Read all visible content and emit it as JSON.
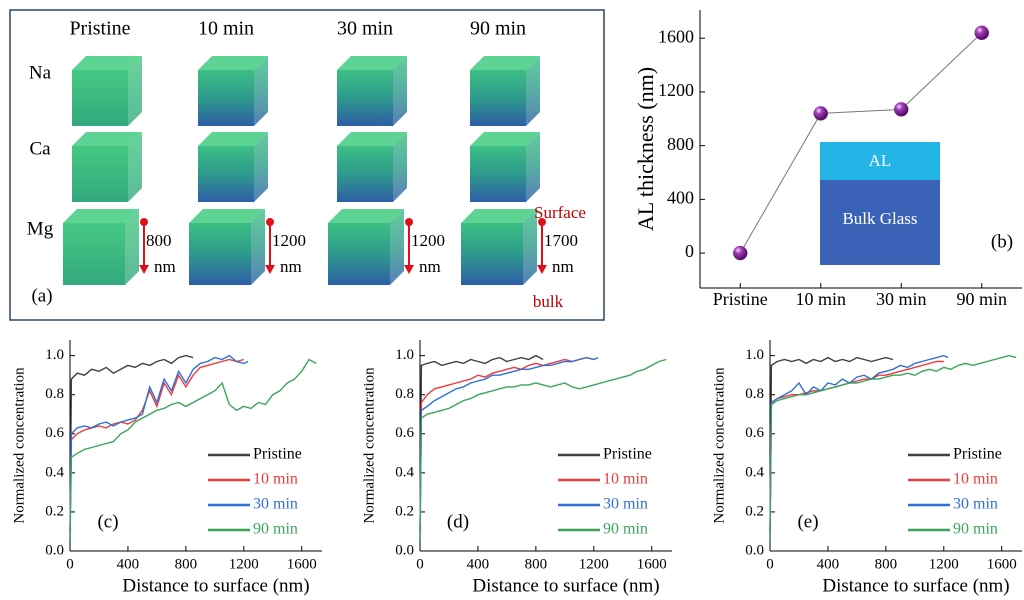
{
  "panel_a": {
    "columns": [
      "Pristine",
      "10 min",
      "30 min",
      "90 min"
    ],
    "rows": [
      "Na",
      "Ca",
      "Mg"
    ],
    "depth_labels": [
      [
        "800",
        "nm"
      ],
      [
        "1200",
        "nm"
      ],
      [
        "1200",
        "nm"
      ],
      [
        "1700",
        "nm"
      ]
    ],
    "surface": "Surface",
    "bulk": "bulk",
    "panel_label": "(a)"
  },
  "chart_data": [
    {
      "type": "line",
      "ylabel": "AL thickness (nm)",
      "categories": [
        "Pristine",
        "10 min",
        "30 min",
        "90 min"
      ],
      "values": [
        0,
        1040,
        1070,
        1640
      ],
      "color": "#8a1e9a",
      "ylim": [
        -260,
        1810
      ],
      "yticks": [
        0,
        400,
        800,
        1200,
        1600
      ],
      "annotations": [
        "AL",
        "Bulk Glass"
      ],
      "panel_label": "(b)"
    },
    {
      "type": "line",
      "xlabel": "Distance to surface (nm)",
      "ylabel": "Normalized concentration",
      "xlim": [
        0,
        1740
      ],
      "xticks": [
        0,
        400,
        800,
        1200,
        1600
      ],
      "ylim": [
        0,
        1.08
      ],
      "yticks": [
        {
          "value": 0,
          "label": "0.0"
        },
        0.2,
        0.4,
        0.6,
        0.8,
        {
          "value": 1,
          "label": "1.0"
        }
      ],
      "panel_label": "(c)",
      "series": [
        {
          "name": "Pristine",
          "color": "#404040",
          "x": [
            0,
            10,
            50,
            100,
            150,
            200,
            250,
            300,
            350,
            400,
            450,
            500,
            550,
            600,
            650,
            700,
            750,
            800,
            850
          ],
          "values": [
            0.05,
            0.88,
            0.91,
            0.9,
            0.93,
            0.92,
            0.94,
            0.91,
            0.93,
            0.95,
            0.94,
            0.96,
            0.95,
            0.97,
            0.98,
            0.96,
            0.99,
            1.0,
            0.99
          ]
        },
        {
          "name": "10 min",
          "color": "#ee3b3b",
          "x": [
            0,
            10,
            50,
            100,
            150,
            200,
            250,
            300,
            350,
            400,
            450,
            500,
            550,
            600,
            650,
            700,
            750,
            800,
            850,
            900,
            950,
            1000,
            1050,
            1100,
            1150,
            1200
          ],
          "values": [
            0.1,
            0.57,
            0.6,
            0.62,
            0.63,
            0.64,
            0.63,
            0.65,
            0.66,
            0.65,
            0.67,
            0.72,
            0.82,
            0.74,
            0.86,
            0.8,
            0.9,
            0.84,
            0.9,
            0.94,
            0.95,
            0.96,
            0.97,
            0.98,
            0.97,
            0.98
          ]
        },
        {
          "name": "30 min",
          "color": "#2f6fd6",
          "x": [
            0,
            10,
            50,
            100,
            150,
            200,
            250,
            300,
            350,
            400,
            450,
            500,
            550,
            600,
            650,
            700,
            750,
            800,
            850,
            900,
            950,
            1000,
            1050,
            1100,
            1150,
            1200,
            1230
          ],
          "values": [
            0.1,
            0.6,
            0.63,
            0.64,
            0.63,
            0.65,
            0.66,
            0.64,
            0.66,
            0.67,
            0.68,
            0.7,
            0.84,
            0.76,
            0.88,
            0.82,
            0.92,
            0.86,
            0.93,
            0.96,
            0.97,
            0.99,
            0.98,
            1.0,
            0.97,
            0.96,
            0.97
          ]
        },
        {
          "name": "90 min",
          "color": "#3aa55a",
          "x": [
            0,
            10,
            50,
            100,
            150,
            200,
            250,
            300,
            350,
            400,
            450,
            500,
            550,
            600,
            650,
            700,
            750,
            800,
            850,
            900,
            950,
            1000,
            1050,
            1100,
            1150,
            1200,
            1250,
            1300,
            1350,
            1400,
            1450,
            1500,
            1550,
            1600,
            1650,
            1700
          ],
          "values": [
            0.05,
            0.48,
            0.5,
            0.52,
            0.53,
            0.54,
            0.55,
            0.56,
            0.6,
            0.62,
            0.66,
            0.68,
            0.7,
            0.72,
            0.73,
            0.75,
            0.76,
            0.74,
            0.76,
            0.78,
            0.8,
            0.82,
            0.86,
            0.75,
            0.72,
            0.74,
            0.73,
            0.76,
            0.75,
            0.8,
            0.82,
            0.86,
            0.88,
            0.92,
            0.98,
            0.96
          ]
        }
      ]
    },
    {
      "type": "line",
      "xlabel": "Distance to surface (nm)",
      "ylabel": "Normalized concentration",
      "xlim": [
        0,
        1740
      ],
      "xticks": [
        0,
        400,
        800,
        1200,
        1600
      ],
      "ylim": [
        0,
        1.08
      ],
      "yticks": [
        {
          "value": 0,
          "label": "0.0"
        },
        0.2,
        0.4,
        0.6,
        0.8,
        {
          "value": 1,
          "label": "1.0"
        }
      ],
      "panel_label": "(d)",
      "series": [
        {
          "name": "Pristine",
          "color": "#404040",
          "x": [
            0,
            10,
            50,
            100,
            150,
            200,
            250,
            300,
            350,
            400,
            450,
            500,
            550,
            600,
            650,
            700,
            750,
            800,
            850
          ],
          "values": [
            0.05,
            0.95,
            0.96,
            0.97,
            0.95,
            0.96,
            0.97,
            0.96,
            0.98,
            0.97,
            0.96,
            0.98,
            0.99,
            0.97,
            0.98,
            0.99,
            0.98,
            1.0,
            0.98
          ]
        },
        {
          "name": "10 min",
          "color": "#ee3b3b",
          "x": [
            0,
            10,
            50,
            100,
            150,
            200,
            250,
            300,
            350,
            400,
            450,
            500,
            550,
            600,
            650,
            700,
            750,
            800,
            850,
            900,
            950,
            1000,
            1050,
            1100,
            1150,
            1200
          ],
          "values": [
            0.1,
            0.76,
            0.8,
            0.83,
            0.84,
            0.85,
            0.86,
            0.87,
            0.88,
            0.9,
            0.89,
            0.91,
            0.92,
            0.93,
            0.94,
            0.93,
            0.95,
            0.96,
            0.95,
            0.96,
            0.97,
            0.98,
            0.97,
            0.98,
            0.99,
            0.98
          ]
        },
        {
          "name": "30 min",
          "color": "#2f6fd6",
          "x": [
            0,
            10,
            50,
            100,
            150,
            200,
            250,
            300,
            350,
            400,
            450,
            500,
            550,
            600,
            650,
            700,
            750,
            800,
            850,
            900,
            950,
            1000,
            1050,
            1100,
            1150,
            1200,
            1230
          ],
          "values": [
            0.1,
            0.72,
            0.74,
            0.77,
            0.79,
            0.81,
            0.83,
            0.84,
            0.86,
            0.87,
            0.88,
            0.9,
            0.9,
            0.91,
            0.92,
            0.93,
            0.93,
            0.94,
            0.95,
            0.95,
            0.96,
            0.97,
            0.97,
            0.98,
            0.99,
            0.98,
            0.99
          ]
        },
        {
          "name": "90 min",
          "color": "#3aa55a",
          "x": [
            0,
            10,
            50,
            100,
            150,
            200,
            250,
            300,
            350,
            400,
            450,
            500,
            550,
            600,
            650,
            700,
            750,
            800,
            850,
            900,
            950,
            1000,
            1050,
            1100,
            1150,
            1200,
            1250,
            1300,
            1350,
            1400,
            1450,
            1500,
            1550,
            1600,
            1650,
            1700
          ],
          "values": [
            0.05,
            0.68,
            0.7,
            0.71,
            0.72,
            0.73,
            0.75,
            0.77,
            0.78,
            0.8,
            0.81,
            0.82,
            0.83,
            0.84,
            0.84,
            0.85,
            0.85,
            0.86,
            0.85,
            0.84,
            0.85,
            0.86,
            0.84,
            0.83,
            0.84,
            0.85,
            0.86,
            0.87,
            0.88,
            0.89,
            0.9,
            0.92,
            0.93,
            0.95,
            0.97,
            0.98
          ]
        }
      ]
    },
    {
      "type": "line",
      "xlabel": "Distance to surface (nm)",
      "ylabel": "Normalized concentration",
      "xlim": [
        0,
        1740
      ],
      "xticks": [
        0,
        400,
        800,
        1200,
        1600
      ],
      "ylim": [
        0,
        1.08
      ],
      "yticks": [
        {
          "value": 0,
          "label": "0.0"
        },
        0.2,
        0.4,
        0.6,
        0.8,
        {
          "value": 1,
          "label": "1.0"
        }
      ],
      "panel_label": "(e)",
      "series": [
        {
          "name": "Pristine",
          "color": "#404040",
          "x": [
            0,
            10,
            50,
            100,
            150,
            200,
            250,
            300,
            350,
            400,
            450,
            500,
            550,
            600,
            650,
            700,
            750,
            800,
            850
          ],
          "values": [
            0.05,
            0.95,
            0.97,
            0.98,
            0.97,
            0.98,
            0.96,
            0.98,
            0.97,
            0.99,
            0.97,
            0.98,
            0.97,
            0.99,
            0.98,
            0.97,
            0.98,
            0.99,
            0.98
          ]
        },
        {
          "name": "10 min",
          "color": "#ee3b3b",
          "x": [
            0,
            10,
            50,
            100,
            150,
            200,
            250,
            300,
            350,
            400,
            450,
            500,
            550,
            600,
            650,
            700,
            750,
            800,
            850,
            900,
            950,
            1000,
            1050,
            1100,
            1150,
            1200
          ],
          "values": [
            0.1,
            0.76,
            0.78,
            0.79,
            0.8,
            0.8,
            0.81,
            0.82,
            0.82,
            0.83,
            0.84,
            0.85,
            0.86,
            0.87,
            0.88,
            0.88,
            0.9,
            0.9,
            0.91,
            0.92,
            0.93,
            0.94,
            0.95,
            0.96,
            0.97,
            0.97
          ]
        },
        {
          "name": "30 min",
          "color": "#2f6fd6",
          "x": [
            0,
            10,
            50,
            100,
            150,
            200,
            250,
            300,
            350,
            400,
            450,
            500,
            550,
            600,
            650,
            700,
            750,
            800,
            850,
            900,
            950,
            1000,
            1050,
            1100,
            1150,
            1200,
            1230
          ],
          "values": [
            0.1,
            0.76,
            0.78,
            0.8,
            0.82,
            0.86,
            0.8,
            0.84,
            0.82,
            0.86,
            0.85,
            0.88,
            0.86,
            0.89,
            0.9,
            0.88,
            0.91,
            0.92,
            0.93,
            0.95,
            0.94,
            0.96,
            0.97,
            0.98,
            0.99,
            1.0,
            0.99
          ]
        },
        {
          "name": "90 min",
          "color": "#3aa55a",
          "x": [
            0,
            10,
            50,
            100,
            150,
            200,
            250,
            300,
            350,
            400,
            450,
            500,
            550,
            600,
            650,
            700,
            750,
            800,
            850,
            900,
            950,
            1000,
            1050,
            1100,
            1150,
            1200,
            1250,
            1300,
            1350,
            1400,
            1450,
            1500,
            1550,
            1600,
            1650,
            1700
          ],
          "values": [
            0.05,
            0.75,
            0.77,
            0.78,
            0.79,
            0.8,
            0.8,
            0.81,
            0.82,
            0.83,
            0.84,
            0.85,
            0.86,
            0.86,
            0.87,
            0.88,
            0.88,
            0.89,
            0.9,
            0.9,
            0.91,
            0.9,
            0.92,
            0.93,
            0.92,
            0.94,
            0.93,
            0.95,
            0.96,
            0.95,
            0.96,
            0.97,
            0.98,
            0.99,
            1.0,
            0.99
          ]
        }
      ]
    }
  ]
}
